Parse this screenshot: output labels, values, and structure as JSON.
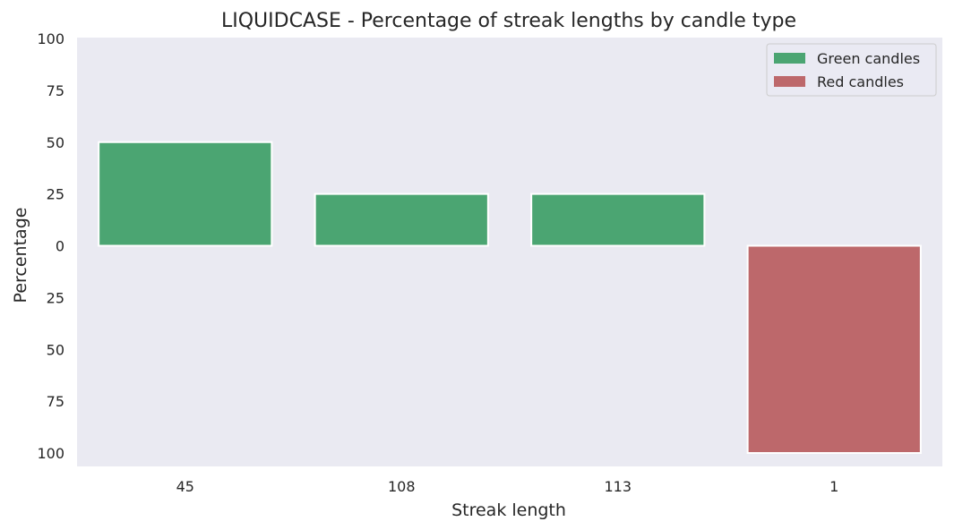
{
  "chart_data": {
    "type": "bar",
    "title": "LIQUIDCASE - Percentage of streak lengths by candle type",
    "xlabel": "Streak length",
    "ylabel": "Percentage",
    "categories": [
      "45",
      "108",
      "113",
      "1"
    ],
    "ylim": [
      -100,
      100
    ],
    "ytick_values": [
      100,
      75,
      50,
      25,
      0,
      -25,
      -50,
      -75,
      -100
    ],
    "ytick_labels": [
      "100",
      "75",
      "50",
      "25",
      "0",
      "25",
      "50",
      "75",
      "100"
    ],
    "series": [
      {
        "name": "Green candles",
        "color": "#4ba572",
        "values": [
          50,
          25,
          25,
          0
        ]
      },
      {
        "name": "Red candles",
        "color": "#bd686b",
        "values": [
          0,
          0,
          0,
          -100
        ]
      }
    ],
    "legend_position": "top-right",
    "background_color": "#eaeaf2",
    "grid": false
  }
}
